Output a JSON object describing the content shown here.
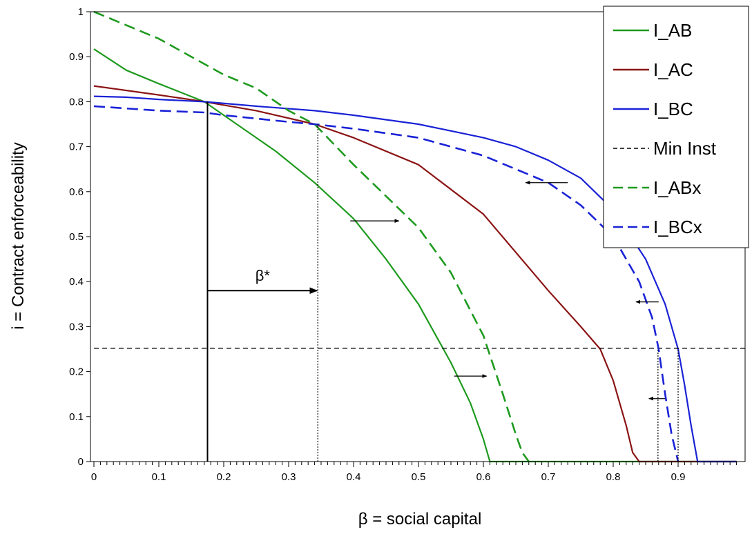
{
  "chart_data": {
    "type": "line",
    "title": "",
    "xlabel": "β = social capital",
    "ylabel": "i = Contract enforceability",
    "xlim": [
      0,
      1
    ],
    "ylim": [
      0,
      1
    ],
    "grid": false,
    "legend_position": "top-right",
    "x_ticks": [
      "0",
      "0.1",
      "0.2",
      "0.3",
      "0.4",
      "0.5",
      "0.6",
      "0.7",
      "0.8",
      "0.9"
    ],
    "y_ticks": [
      "0",
      "0.1",
      "0.2",
      "0.3",
      "0.4",
      "0.5",
      "0.6",
      "0.7",
      "0.8",
      "0.9",
      "1"
    ],
    "series": [
      {
        "name": "I_AB",
        "color": "#1e9a1e",
        "dash": "solid",
        "x": [
          0,
          0.05,
          0.1,
          0.17,
          0.22,
          0.28,
          0.34,
          0.4,
          0.45,
          0.5,
          0.55,
          0.58,
          0.6,
          0.61,
          0.62,
          0.7,
          0.8,
          0.9,
          0.99
        ],
        "y": [
          0.917,
          0.87,
          0.84,
          0.8,
          0.75,
          0.69,
          0.62,
          0.54,
          0.45,
          0.35,
          0.22,
          0.13,
          0.05,
          0.0,
          0.0,
          0.0,
          0.0,
          0.0,
          0.0
        ]
      },
      {
        "name": "I_AC",
        "color": "#8b1414",
        "dash": "solid",
        "x": [
          0,
          0.1,
          0.17,
          0.25,
          0.34,
          0.4,
          0.5,
          0.6,
          0.7,
          0.75,
          0.78,
          0.8,
          0.82,
          0.83,
          0.84,
          0.9,
          0.99
        ],
        "y": [
          0.835,
          0.815,
          0.8,
          0.78,
          0.75,
          0.72,
          0.66,
          0.55,
          0.38,
          0.3,
          0.25,
          0.18,
          0.08,
          0.02,
          0.0,
          0.0,
          0.0
        ]
      },
      {
        "name": "I_BC",
        "color": "#1a22d6",
        "dash": "solid",
        "x": [
          0,
          0.05,
          0.1,
          0.17,
          0.25,
          0.34,
          0.4,
          0.5,
          0.6,
          0.65,
          0.7,
          0.75,
          0.8,
          0.85,
          0.88,
          0.9,
          0.91,
          0.92,
          0.93,
          0.99
        ],
        "y": [
          0.812,
          0.81,
          0.805,
          0.8,
          0.79,
          0.78,
          0.77,
          0.75,
          0.72,
          0.7,
          0.67,
          0.63,
          0.56,
          0.45,
          0.35,
          0.25,
          0.17,
          0.08,
          0.0,
          0.0
        ]
      },
      {
        "name": "Min Inst",
        "color": "#000000",
        "dash": "shortdash",
        "x": [
          0,
          0.99
        ],
        "y": [
          0.252,
          0.252
        ]
      },
      {
        "name": "I_ABx",
        "color": "#1e9a1e",
        "dash": "longdash",
        "x": [
          0,
          0.05,
          0.1,
          0.15,
          0.2,
          0.25,
          0.3,
          0.34,
          0.4,
          0.45,
          0.5,
          0.55,
          0.6,
          0.63,
          0.65,
          0.66,
          0.67
        ],
        "y": [
          1.0,
          0.97,
          0.94,
          0.9,
          0.86,
          0.83,
          0.78,
          0.75,
          0.66,
          0.59,
          0.52,
          0.42,
          0.28,
          0.15,
          0.06,
          0.02,
          0.0
        ]
      },
      {
        "name": "I_BCx",
        "color": "#1a22d6",
        "dash": "longdash",
        "x": [
          0,
          0.05,
          0.1,
          0.17,
          0.2,
          0.3,
          0.34,
          0.4,
          0.5,
          0.6,
          0.7,
          0.75,
          0.8,
          0.84,
          0.86,
          0.87,
          0.88,
          0.89,
          0.9
        ],
        "y": [
          0.79,
          0.785,
          0.78,
          0.776,
          0.77,
          0.755,
          0.75,
          0.74,
          0.72,
          0.68,
          0.62,
          0.57,
          0.5,
          0.4,
          0.32,
          0.25,
          0.15,
          0.06,
          0.0
        ]
      }
    ],
    "annotations": {
      "beta_star_label": "β*",
      "beta_star_line_x": 0.175,
      "beta_star_line_top": 0.8,
      "beta_shift_x": 0.345,
      "beta_shift_top": 0.75,
      "beta_arrow_y": 0.38,
      "vertical_lines": [
        {
          "x": 0.175,
          "y0": 0,
          "y1": 0.8,
          "style": "solid"
        },
        {
          "x": 0.345,
          "y0": 0,
          "y1": 0.75,
          "style": "dotted"
        },
        {
          "x": 0.869,
          "y0": 0,
          "y1": 0.252,
          "style": "dotted"
        },
        {
          "x": 0.9,
          "y0": 0,
          "y1": 0.252,
          "style": "dotted"
        }
      ],
      "shift_arrows": [
        {
          "x0": 0.395,
          "x1": 0.47,
          "y": 0.535
        },
        {
          "x0": 0.555,
          "x1": 0.605,
          "y": 0.19
        },
        {
          "x0": 0.73,
          "x1": 0.665,
          "y": 0.62
        },
        {
          "x0": 0.87,
          "x1": 0.835,
          "y": 0.355
        },
        {
          "x0": 0.88,
          "x1": 0.855,
          "y": 0.14
        }
      ]
    }
  }
}
